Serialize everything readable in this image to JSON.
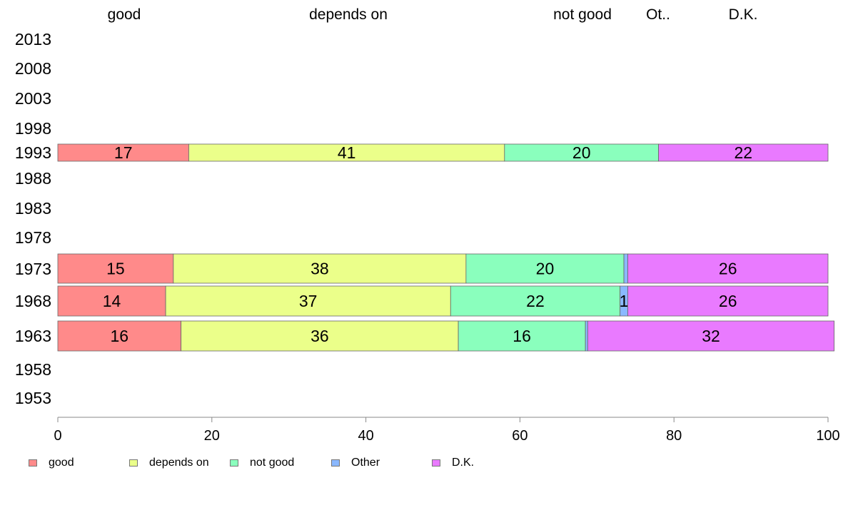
{
  "chart_data": {
    "type": "bar",
    "orientation": "horizontal",
    "stacked": true,
    "categories": [
      "2013",
      "2008",
      "2003",
      "1998",
      "1993",
      "1988",
      "1983",
      "1978",
      "1973",
      "1968",
      "1963",
      "1958",
      "1953"
    ],
    "series": [
      {
        "name": "good",
        "color": "#ff8a8a",
        "values": [
          null,
          null,
          null,
          null,
          17,
          null,
          null,
          null,
          15,
          14,
          16,
          null,
          null
        ]
      },
      {
        "name": "depends on",
        "color": "#ebff8a",
        "values": [
          null,
          null,
          null,
          null,
          41,
          null,
          null,
          null,
          38,
          37,
          36,
          null,
          null
        ]
      },
      {
        "name": "not good",
        "color": "#8affbd",
        "values": [
          null,
          null,
          null,
          null,
          20,
          null,
          null,
          null,
          20.5,
          22,
          16.5,
          null,
          null
        ]
      },
      {
        "name": "Other",
        "color": "#8ab8ff",
        "values": [
          null,
          null,
          null,
          null,
          0,
          null,
          null,
          null,
          0.5,
          1,
          0.3,
          null,
          null
        ]
      },
      {
        "name": "D.K.",
        "color": "#e97aff",
        "values": [
          null,
          null,
          null,
          null,
          22,
          null,
          null,
          null,
          26,
          26,
          32,
          null,
          null
        ]
      }
    ],
    "data_labels": {
      "1993": [
        "17",
        "41",
        "20",
        "",
        "22"
      ],
      "1973": [
        "15",
        "38",
        "20",
        "",
        "26"
      ],
      "1968": [
        "14",
        "37",
        "22",
        "1",
        "26"
      ],
      "1963": [
        "16",
        "36",
        "16",
        "",
        "32"
      ]
    },
    "top_labels": [
      "good",
      "depends on",
      "not good",
      "Ot..",
      "D.K."
    ],
    "xlim": [
      0,
      100
    ],
    "xticks": [
      "0",
      "20",
      "40",
      "60",
      "80",
      "100"
    ],
    "legend_position": "bottom",
    "grid": false,
    "title": "",
    "xlabel": "",
    "ylabel": ""
  }
}
